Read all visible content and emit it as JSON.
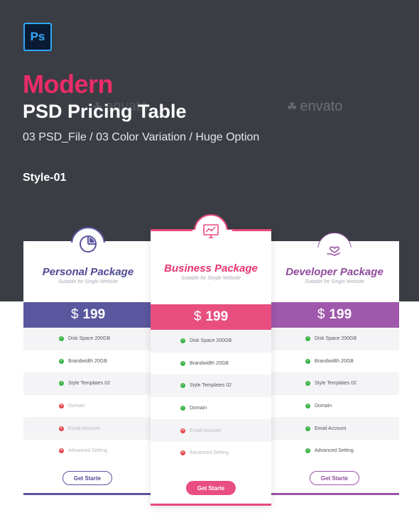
{
  "header": {
    "app_badge": "Ps",
    "title_accent": "Modern",
    "title": "PSD Pricing Table",
    "subtitle": "03 PSD_File / 03 Color Variation / Huge Option",
    "style_label": "Style-01",
    "watermark": "envato"
  },
  "colors": {
    "background_dark": "#3b3d45",
    "accent_pink": "#ea2c68",
    "personal": "#5b579e",
    "business": "#e84f80",
    "developer": "#9f58ab",
    "check": "#3cb44a",
    "cross": "#e5484d"
  },
  "plans": [
    {
      "id": "personal",
      "icon": "pie-chart-icon",
      "name": "Personal Package",
      "tagline": "Suitable for Single Website",
      "currency": "$",
      "price": "199",
      "features": [
        {
          "label": "Disk Space 200GB",
          "included": true
        },
        {
          "label": "Brandwidth 20GB",
          "included": true
        },
        {
          "label": "Style Templates 02",
          "included": true
        },
        {
          "label": "Domain",
          "included": false
        },
        {
          "label": "Email Account",
          "included": false
        },
        {
          "label": "Advanced Setting",
          "included": false
        }
      ],
      "cta": "Get Starte"
    },
    {
      "id": "business",
      "icon": "monitor-chart-icon",
      "name": "Business Package",
      "tagline": "Suitable for Single Website",
      "currency": "$",
      "price": "199",
      "features": [
        {
          "label": "Disk Space 200GB",
          "included": true
        },
        {
          "label": "Brandwidth 20GB",
          "included": true
        },
        {
          "label": "Style Templates 02",
          "included": true
        },
        {
          "label": "Domain",
          "included": true
        },
        {
          "label": "Email Account",
          "included": false
        },
        {
          "label": "Advanced Setting",
          "included": false
        }
      ],
      "cta": "Get Starte"
    },
    {
      "id": "developer",
      "icon": "hand-heart-icon",
      "name": "Developer Package",
      "tagline": "Suitable for Single Website",
      "currency": "$",
      "price": "199",
      "features": [
        {
          "label": "Disk Space 200GB",
          "included": true
        },
        {
          "label": "Brandwidth 20GB",
          "included": true
        },
        {
          "label": "Style Templates 02",
          "included": true
        },
        {
          "label": "Domain",
          "included": true
        },
        {
          "label": "Email Account",
          "included": true
        },
        {
          "label": "Advanced Setting",
          "included": true
        }
      ],
      "cta": "Get Starte"
    }
  ]
}
